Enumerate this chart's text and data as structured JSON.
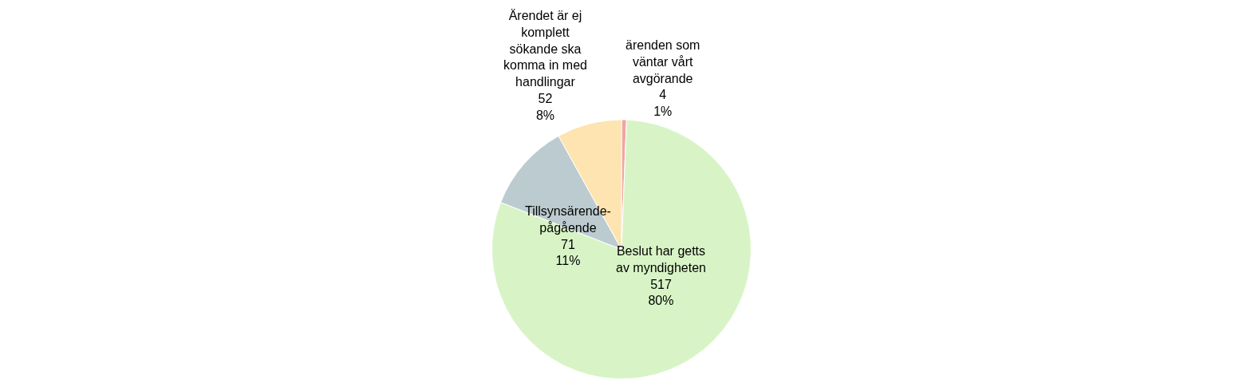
{
  "chart_data": {
    "type": "pie",
    "categories": [
      "ärenden som\nväntar vårt\navgörande",
      "Beslut har getts\nav myndigheten",
      "Tillsynsärende-\npågående",
      "Ärendet är ej\nkomplett\nsökande ska\nkomma in med\nhandlingar"
    ],
    "values": [
      4,
      517,
      71,
      52
    ],
    "value_labels": [
      "4\n1%",
      "517\n80%",
      "71\n11%",
      "52\n8%"
    ],
    "colors": [
      "#f5a3a3",
      "#d8f4c6",
      "#bccbcf",
      "#fde4b0"
    ]
  }
}
